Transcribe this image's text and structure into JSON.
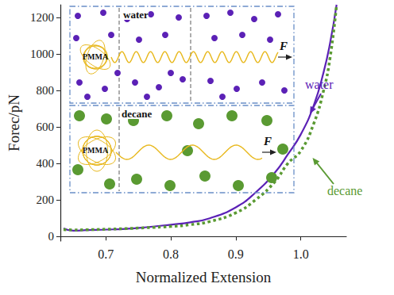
{
  "chart_data": {
    "type": "line",
    "x_label": "Normalized Extension",
    "y_label": "Forec/pN",
    "x": [
      0.635,
      0.65,
      0.67,
      0.7,
      0.73,
      0.76,
      0.8,
      0.83,
      0.86,
      0.9,
      0.93,
      0.96,
      0.98,
      1.0,
      1.02,
      1.035,
      1.045,
      1.055
    ],
    "series": [
      {
        "name": "water",
        "color": "#5b21b6",
        "line_style": "solid",
        "values": [
          45,
          32,
          35,
          38,
          42,
          50,
          65,
          78,
          100,
          160,
          240,
          350,
          450,
          560,
          720,
          900,
          1060,
          1270
        ]
      },
      {
        "name": "decane",
        "color": "#5a9a32",
        "line_style": "dotted",
        "values": [
          38,
          36,
          37,
          40,
          43,
          48,
          55,
          65,
          82,
          130,
          200,
          300,
          400,
          470,
          620,
          800,
          980,
          1270
        ]
      }
    ],
    "xlim": [
      0.63,
      1.07
    ],
    "xticks": [
      0.7,
      0.8,
      0.9,
      {
        "value": 1,
        "label": "1.0"
      }
    ],
    "ylim": [
      -25,
      1270
    ],
    "yticks": [
      0,
      200,
      400,
      600,
      800,
      1000,
      1200
    ],
    "grid": false,
    "annotations": {
      "inset": [
        {
          "medium": "water",
          "polymer": "PMMA",
          "force": "F"
        },
        {
          "medium": "decane",
          "polymer": "PMMA",
          "force": "F"
        }
      ]
    }
  }
}
